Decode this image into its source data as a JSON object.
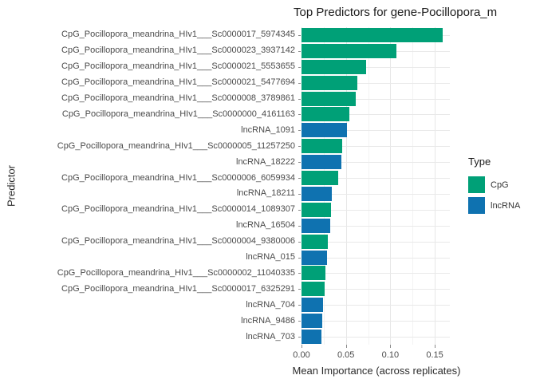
{
  "title": "Top Predictors for gene-Pocillopora_m",
  "axes": {
    "x_label": "Mean Importance (across replicates)",
    "y_label": "Predictor",
    "x_ticks_labels": [
      "0.00",
      "0.05",
      "0.10",
      "0.15"
    ],
    "x_ticks_values": [
      0,
      0.05,
      0.1,
      0.15
    ],
    "x_minor_ticks": [
      0.025,
      0.075,
      0.125
    ]
  },
  "legend": {
    "title": "Type",
    "entries": [
      {
        "label": "CpG",
        "color": "#00a077"
      },
      {
        "label": "lncRNA",
        "color": "#0f72b0"
      }
    ]
  },
  "chart_data": {
    "type": "bar",
    "orientation": "horizontal",
    "title": "Top Predictors for gene-Pocillopora_m",
    "xlabel": "Mean Importance (across replicates)",
    "ylabel": "Predictor",
    "xlim": [
      0,
      0.167
    ],
    "x_ticks": [
      0,
      0.05,
      0.1,
      0.15
    ],
    "grid": "on",
    "legend_title": "Type",
    "legend_position": "right",
    "series_colors": {
      "CpG": "#00a077",
      "lncRNA": "#0f72b0"
    },
    "bars": [
      {
        "label": "CpG_Pocillopora_meandrina_HIv1___Sc0000017_5974345",
        "type": "CpG",
        "value": 0.159
      },
      {
        "label": "CpG_Pocillopora_meandrina_HIv1___Sc0000023_3937142",
        "type": "CpG",
        "value": 0.107
      },
      {
        "label": "CpG_Pocillopora_meandrina_HIv1___Sc0000021_5553655",
        "type": "CpG",
        "value": 0.073
      },
      {
        "label": "CpG_Pocillopora_meandrina_HIv1___Sc0000021_5477694",
        "type": "CpG",
        "value": 0.063
      },
      {
        "label": "CpG_Pocillopora_meandrina_HIv1___Sc0000008_3789861",
        "type": "CpG",
        "value": 0.061
      },
      {
        "label": "CpG_Pocillopora_meandrina_HIv1___Sc0000000_4161163",
        "type": "CpG",
        "value": 0.054
      },
      {
        "label": "lncRNA_1091",
        "type": "lncRNA",
        "value": 0.051
      },
      {
        "label": "CpG_Pocillopora_meandrina_HIv1___Sc0000005_11257250",
        "type": "CpG",
        "value": 0.046
      },
      {
        "label": "lncRNA_18222",
        "type": "lncRNA",
        "value": 0.045
      },
      {
        "label": "CpG_Pocillopora_meandrina_HIv1___Sc0000006_6059934",
        "type": "CpG",
        "value": 0.041
      },
      {
        "label": "lncRNA_18211",
        "type": "lncRNA",
        "value": 0.034
      },
      {
        "label": "CpG_Pocillopora_meandrina_HIv1___Sc0000014_1089307",
        "type": "CpG",
        "value": 0.033
      },
      {
        "label": "lncRNA_16504",
        "type": "lncRNA",
        "value": 0.032
      },
      {
        "label": "CpG_Pocillopora_meandrina_HIv1___Sc0000004_9380006",
        "type": "CpG",
        "value": 0.03
      },
      {
        "label": "lncRNA_015",
        "type": "lncRNA",
        "value": 0.029
      },
      {
        "label": "CpG_Pocillopora_meandrina_HIv1___Sc0000002_11040335",
        "type": "CpG",
        "value": 0.027
      },
      {
        "label": "CpG_Pocillopora_meandrina_HIv1___Sc0000017_6325291",
        "type": "CpG",
        "value": 0.026
      },
      {
        "label": "lncRNA_704",
        "type": "lncRNA",
        "value": 0.024
      },
      {
        "label": "lncRNA_9486",
        "type": "lncRNA",
        "value": 0.023
      },
      {
        "label": "lncRNA_703",
        "type": "lncRNA",
        "value": 0.022
      }
    ]
  }
}
